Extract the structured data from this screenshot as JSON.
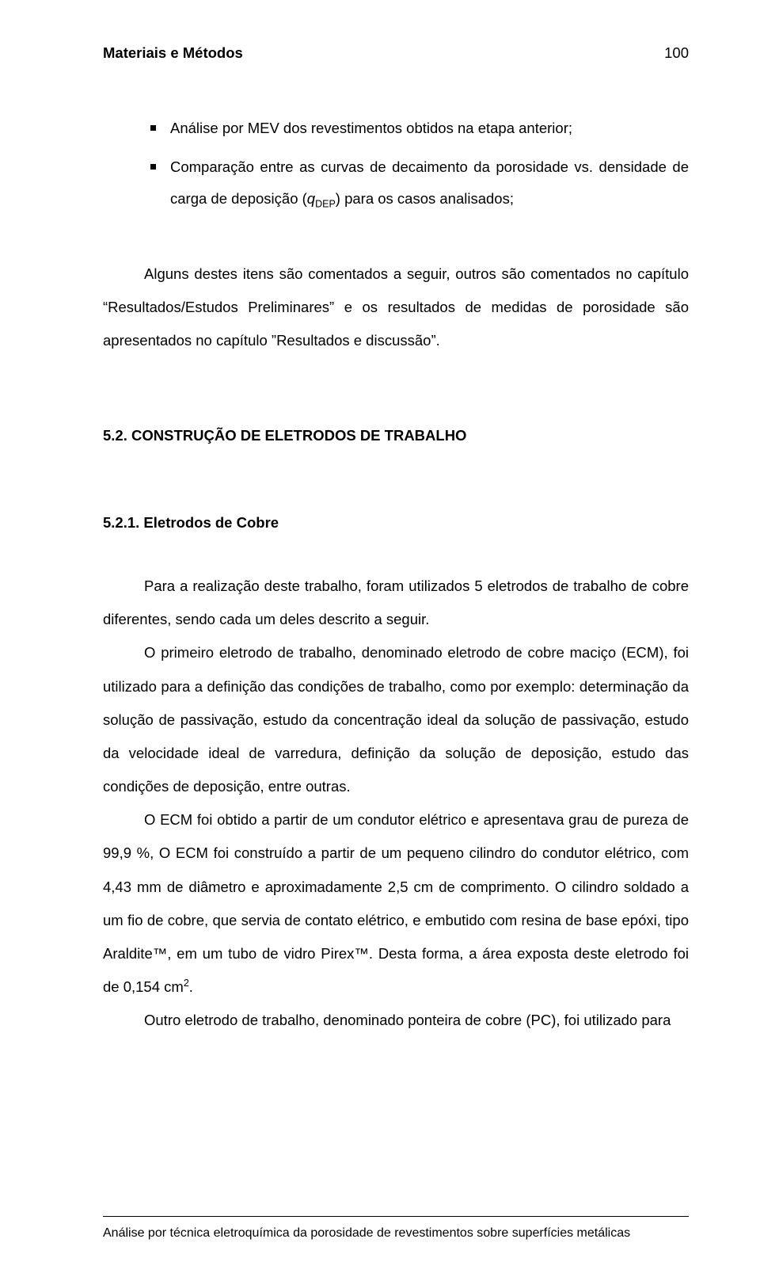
{
  "header": {
    "title": "Materiais e Métodos",
    "page": "100"
  },
  "bullets": [
    "Análise por MEV dos revestimentos obtidos na etapa anterior;",
    "Comparação entre as curvas de decaimento da porosidade vs. densidade de carga de deposição (",
    ") para os casos analisados;"
  ],
  "var": {
    "q": "q",
    "dep": "DEP"
  },
  "intro_para": "Alguns destes itens são comentados a seguir, outros são comentados no capítulo “Resultados/Estudos Preliminares” e os resultados de medidas de porosidade são apresentados no capítulo ”Resultados e discussão”.",
  "section": "5.2. CONSTRUÇÃO DE ELETRODOS DE TRABALHO",
  "subsection": "5.2.1. Eletrodos de Cobre",
  "body": {
    "p1": "Para a realização deste trabalho, foram utilizados 5 eletrodos de trabalho de cobre diferentes, sendo cada um deles descrito a seguir.",
    "p2": "O primeiro eletrodo de trabalho, denominado eletrodo de cobre maciço (ECM), foi utilizado para a definição das condições de trabalho, como por exemplo: determinação da solução de passivação, estudo da concentração ideal da solução de passivação, estudo da velocidade ideal de varredura, definição da solução de deposição, estudo das condições de deposição, entre outras.",
    "p3a": "O ECM foi obtido a partir de um condutor elétrico e apresentava grau de pureza de 99,9 %, O ECM foi construído a partir de um pequeno cilindro do condutor elétrico, com 4,43 mm de diâmetro e aproximadamente 2,5 cm de comprimento. O cilindro soldado a um fio de cobre, que servia de contato elétrico, e embutido com resina de base epóxi, tipo Araldite™, em um tubo de vidro Pirex™. Desta forma, a área exposta deste eletrodo foi de 0,154 cm",
    "p3b": ".",
    "p4": "Outro eletrodo de trabalho, denominado ponteira de cobre (PC), foi utilizado para"
  },
  "sup2": "2",
  "footer": "Análise por técnica eletroquímica da porosidade de revestimentos sobre superfícies metálicas"
}
